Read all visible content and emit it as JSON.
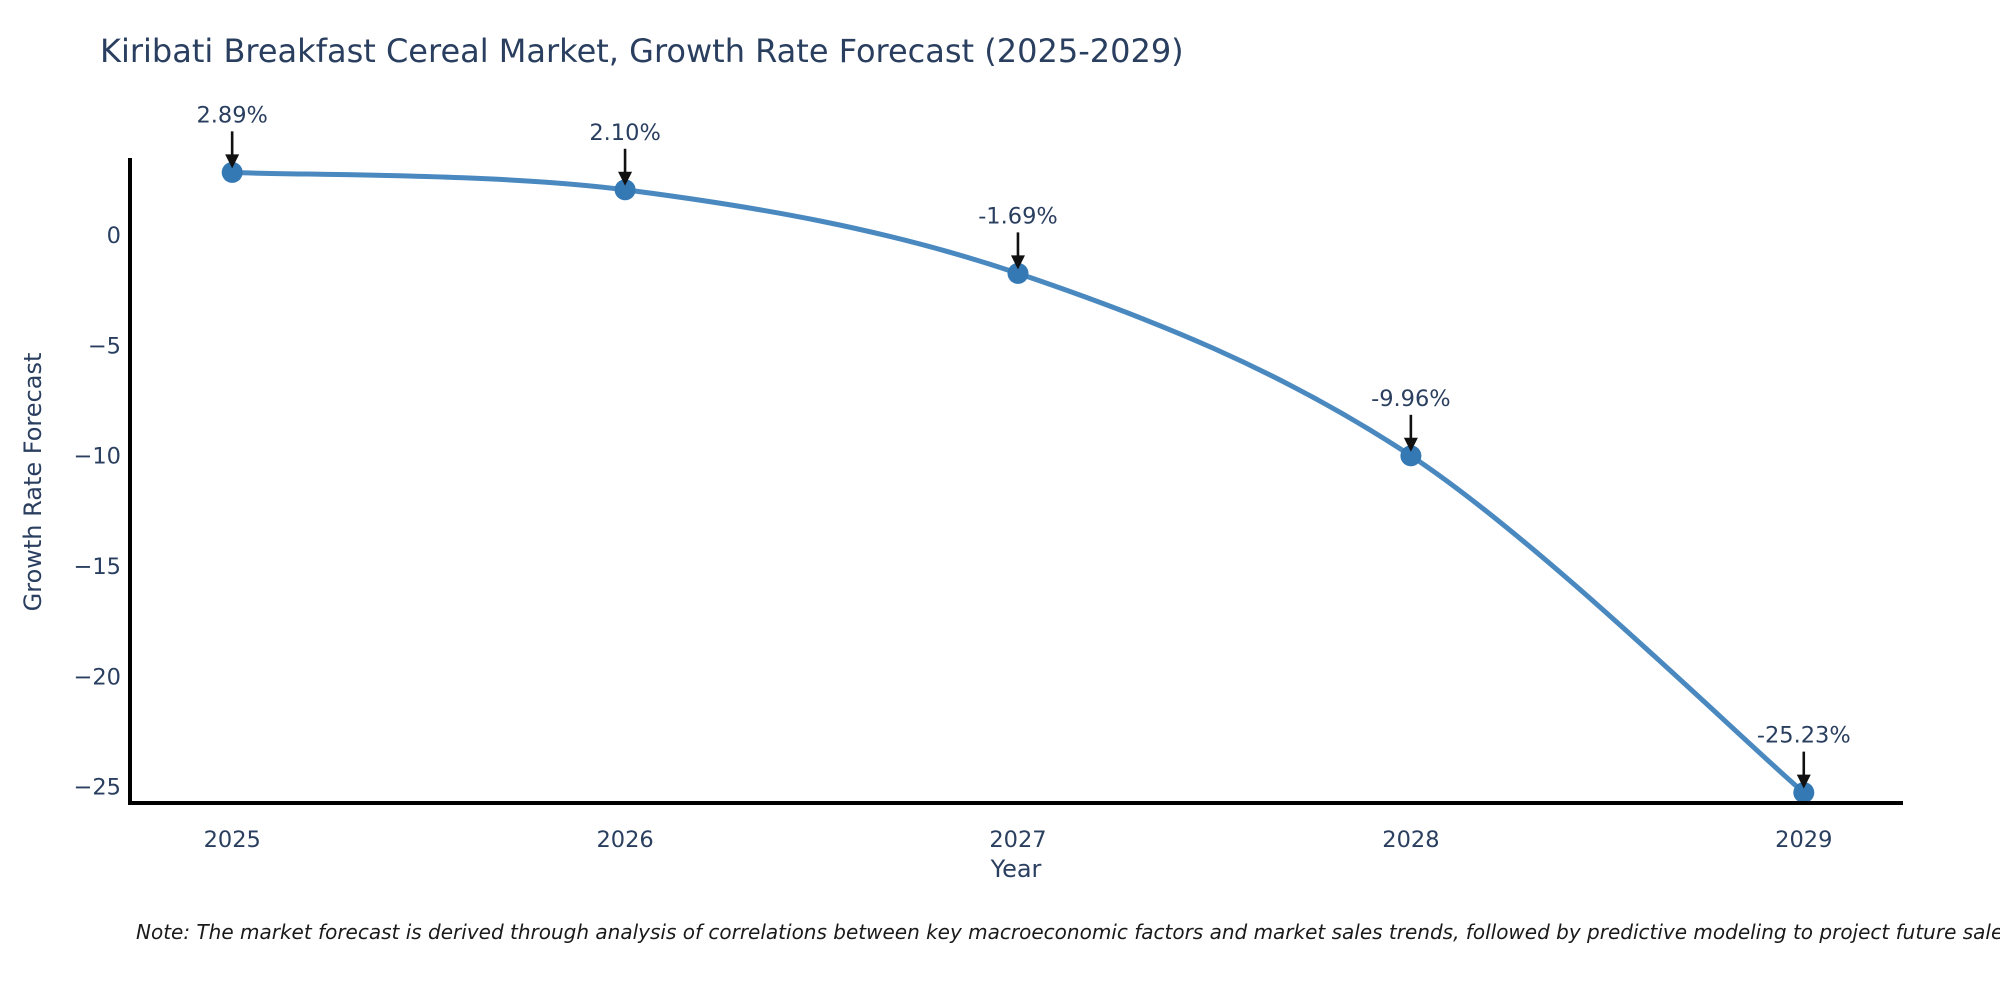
{
  "title": "Kiribati Breakfast Cereal Market, Growth Rate Forecast (2025-2029)",
  "note": "Note: The market forecast is derived through analysis of correlations between key macroeconomic factors and market sales trends, followed by predictive modeling to project future sales.",
  "colors": {
    "line": "#4a89c0",
    "marker": "#3478b4",
    "text": "#2a3f5f",
    "arrow": "#111111",
    "spine": "#000000",
    "background": "#ffffff"
  },
  "chart_data": {
    "type": "line",
    "title": "Kiribati Breakfast Cereal Market, Growth Rate Forecast (2025-2029)",
    "xlabel": "Year",
    "ylabel": "Growth Rate Forecast",
    "x": [
      2025,
      2026,
      2027,
      2028,
      2029
    ],
    "values": [
      2.89,
      2.1,
      -1.69,
      -9.96,
      -25.23
    ],
    "point_labels": [
      "2.89%",
      "2.10%",
      "-1.69%",
      "-9.96%",
      "-25.23%"
    ],
    "x_tick_values": [
      2025,
      2026,
      2027,
      2028,
      2029
    ],
    "x_tick_labels": [
      "2025",
      "2026",
      "2027",
      "2028",
      "2029"
    ],
    "y_tick_values": [
      0,
      -5,
      -10,
      -15,
      -20,
      -25
    ],
    "y_tick_labels": [
      "0",
      "−5",
      "−10",
      "−15",
      "−20",
      "−25"
    ],
    "x_range": [
      2024.74,
      2029.25
    ],
    "y_range": [
      -25.7,
      3.45
    ],
    "grid": false,
    "legend_position": "none",
    "line_shape": "spline",
    "annotations": "value labels with downward arrows above each data point"
  }
}
